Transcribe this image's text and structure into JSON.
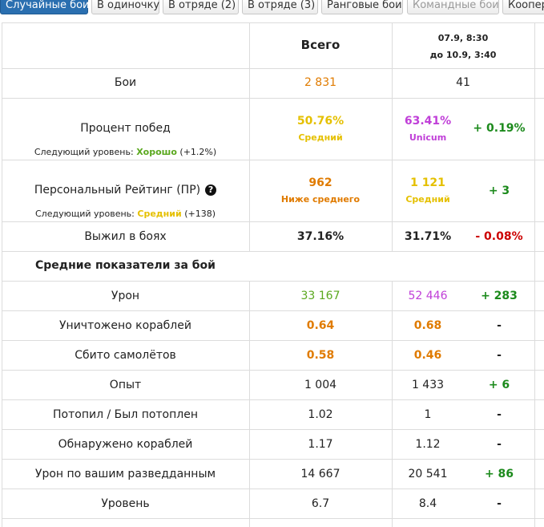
{
  "tabs": [
    {
      "label": "Случайные бои"
    },
    {
      "label": "В одиночку"
    },
    {
      "label": "В отряде (2)"
    },
    {
      "label": "В отряде (3)"
    },
    {
      "label": "Ранговые бои"
    },
    {
      "label": "Командные бои"
    },
    {
      "label": "Коопер"
    }
  ],
  "header": {
    "total_label": "Всего",
    "period_line1": "07.9, 8:30",
    "period_line2": "до 10.9, 3:40"
  },
  "rows": {
    "battles": {
      "label": "Бои",
      "total": "2 831",
      "period": "41"
    },
    "winrate": {
      "label": "Процент побед",
      "next_prefix": "Следующий уровень:",
      "next_level": "Хорошо",
      "next_delta": "(+1.2%)",
      "total": "50.76%",
      "total_rating": "Средний",
      "period": "63.41%",
      "period_rating": "Unicum",
      "delta": "+ 0.19%"
    },
    "pr": {
      "label": "Персональный Рейтинг (ПР)",
      "help": "?",
      "next_prefix": "Следующий уровень:",
      "next_level": "Средний",
      "next_delta": "(+138)",
      "total": "962",
      "total_rating": "Ниже среднего",
      "period": "1 121",
      "period_rating": "Средний",
      "delta": "+ 3"
    },
    "survived": {
      "label": "Выжил в боях",
      "total": "37.16%",
      "period": "31.71%",
      "delta": "- 0.08%"
    },
    "section_title": "Средние показатели за бой",
    "damage": {
      "label": "Урон",
      "total": "33 167",
      "period": "52 446",
      "delta": "+ 283"
    },
    "kills": {
      "label": "Уничтожено кораблей",
      "total": "0.64",
      "period": "0.68",
      "delta": "-"
    },
    "planes": {
      "label": "Сбито самолётов",
      "total": "0.58",
      "period": "0.46",
      "delta": "-"
    },
    "xp": {
      "label": "Опыт",
      "total": "1 004",
      "period": "1 433",
      "delta": "+ 6"
    },
    "kd": {
      "label": "Потопил / Был потоплен",
      "total": "1.02",
      "period": "1",
      "delta": "-"
    },
    "spotted": {
      "label": "Обнаружено кораблей",
      "total": "1.17",
      "period": "1.12",
      "delta": "-"
    },
    "spot_damage": {
      "label": "Урон по вашим разведданным",
      "total": "14 667",
      "period": "20 541",
      "delta": "+ 86"
    },
    "tier": {
      "label": "Уровень",
      "total": "6.7",
      "period": "8.4",
      "delta": "-"
    }
  }
}
